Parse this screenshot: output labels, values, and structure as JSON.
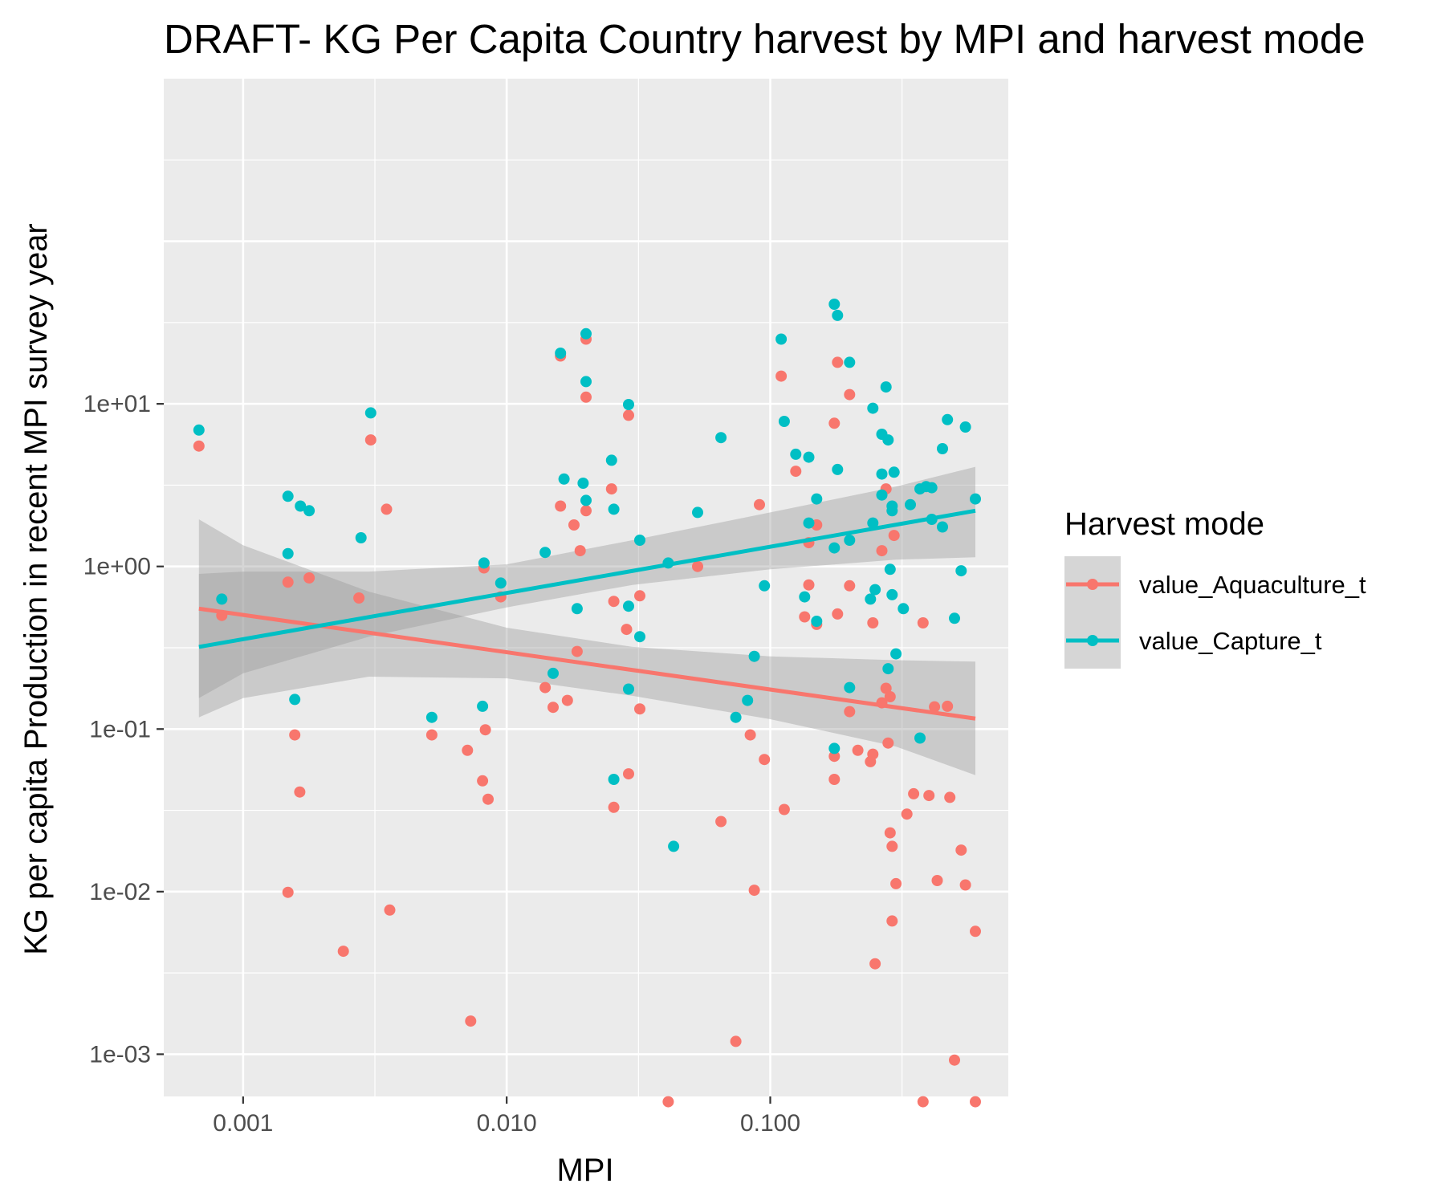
{
  "chart_data": {
    "type": "scatter",
    "title": "DRAFT- KG Per Capita Country harvest by MPI and harvest mode",
    "xlabel": "MPI",
    "ylabel": "KG per capita Production in recent MPI survey year",
    "x_scale": "log10",
    "y_scale": "log10",
    "xlim": [
      0.0005,
      0.8
    ],
    "ylim": [
      0.00055,
      1000
    ],
    "x_ticks": [
      {
        "value": 0.001,
        "label": "0.001"
      },
      {
        "value": 0.01,
        "label": "0.010"
      },
      {
        "value": 0.1,
        "label": "0.100"
      }
    ],
    "y_ticks": [
      {
        "value": 0.001,
        "label": "1e-03"
      },
      {
        "value": 0.01,
        "label": "1e-02"
      },
      {
        "value": 0.1,
        "label": "1e-01"
      },
      {
        "value": 1,
        "label": "1e+00"
      },
      {
        "value": 10,
        "label": "1e+01"
      }
    ],
    "grid": true,
    "legend": {
      "title": "Harvest mode",
      "position": "right"
    },
    "series": [
      {
        "name": "value_Aquaculture_t",
        "color": "#F8766D",
        "points": [
          [
            0.00068,
            5.5
          ],
          [
            0.00083,
            0.5
          ],
          [
            0.00148,
            0.8
          ],
          [
            0.00148,
            0.0099
          ],
          [
            0.00157,
            0.092
          ],
          [
            0.00164,
            0.041
          ],
          [
            0.00178,
            0.85
          ],
          [
            0.0024,
            0.0043
          ],
          [
            0.00275,
            0.64
          ],
          [
            0.00305,
            6.0
          ],
          [
            0.0035,
            2.25
          ],
          [
            0.0036,
            0.0077
          ],
          [
            0.0052,
            0.092
          ],
          [
            0.0071,
            0.074
          ],
          [
            0.0073,
            0.0016
          ],
          [
            0.0081,
            0.048
          ],
          [
            0.0082,
            0.98
          ],
          [
            0.0083,
            0.099
          ],
          [
            0.0085,
            0.037
          ],
          [
            0.0095,
            0.65
          ],
          [
            0.014,
            0.18
          ],
          [
            0.015,
            0.136
          ],
          [
            0.016,
            2.35
          ],
          [
            0.016,
            19.7
          ],
          [
            0.017,
            0.15
          ],
          [
            0.018,
            1.8
          ],
          [
            0.0185,
            0.3
          ],
          [
            0.019,
            1.25
          ],
          [
            0.02,
            11.0
          ],
          [
            0.02,
            2.2
          ],
          [
            0.02,
            25.0
          ],
          [
            0.025,
            3.0
          ],
          [
            0.0255,
            0.61
          ],
          [
            0.0255,
            0.033
          ],
          [
            0.0285,
            0.41
          ],
          [
            0.029,
            8.5
          ],
          [
            0.029,
            0.053
          ],
          [
            0.032,
            0.66
          ],
          [
            0.032,
            0.133
          ],
          [
            0.041,
            0.00051
          ],
          [
            0.053,
            1.0
          ],
          [
            0.065,
            0.027
          ],
          [
            0.074,
            0.0012
          ],
          [
            0.084,
            0.092
          ],
          [
            0.087,
            0.0102
          ],
          [
            0.091,
            2.4
          ],
          [
            0.095,
            0.065
          ],
          [
            0.11,
            14.8
          ],
          [
            0.113,
            0.032
          ],
          [
            0.125,
            3.85
          ],
          [
            0.135,
            0.49
          ],
          [
            0.14,
            0.77
          ],
          [
            0.14,
            1.4
          ],
          [
            0.15,
            0.44
          ],
          [
            0.15,
            1.8
          ],
          [
            0.175,
            7.6
          ],
          [
            0.175,
            0.068
          ],
          [
            0.175,
            0.049
          ],
          [
            0.18,
            18.0
          ],
          [
            0.18,
            0.51
          ],
          [
            0.2,
            11.4
          ],
          [
            0.2,
            0.76
          ],
          [
            0.2,
            0.128
          ],
          [
            0.215,
            0.074
          ],
          [
            0.24,
            0.063
          ],
          [
            0.245,
            0.45
          ],
          [
            0.245,
            0.07
          ],
          [
            0.25,
            0.0036
          ],
          [
            0.265,
            1.25
          ],
          [
            0.265,
            0.145
          ],
          [
            0.275,
            3.0
          ],
          [
            0.275,
            0.178
          ],
          [
            0.28,
            0.082
          ],
          [
            0.285,
            0.158
          ],
          [
            0.285,
            0.023
          ],
          [
            0.29,
            0.0066
          ],
          [
            0.29,
            0.019
          ],
          [
            0.295,
            1.55
          ],
          [
            0.3,
            0.0112
          ],
          [
            0.33,
            0.03
          ],
          [
            0.35,
            0.04
          ],
          [
            0.38,
            0.45
          ],
          [
            0.38,
            0.00051
          ],
          [
            0.4,
            0.039
          ],
          [
            0.42,
            0.137
          ],
          [
            0.43,
            0.0117
          ],
          [
            0.47,
            0.138
          ],
          [
            0.48,
            0.038
          ],
          [
            0.5,
            0.00092
          ],
          [
            0.53,
            0.018
          ],
          [
            0.55,
            0.011
          ],
          [
            0.6,
            0.0057
          ],
          [
            0.6,
            0.00051
          ]
        ],
        "trend": {
          "x": [
            0.00068,
            0.6
          ],
          "y": [
            0.55,
            0.116
          ]
        }
      },
      {
        "name": "value_Capture_t",
        "color": "#00BFC4",
        "points": [
          [
            0.00068,
            6.9
          ],
          [
            0.00083,
            0.63
          ],
          [
            0.00148,
            2.7
          ],
          [
            0.00148,
            1.2
          ],
          [
            0.00157,
            0.152
          ],
          [
            0.00165,
            2.35
          ],
          [
            0.00178,
            2.2
          ],
          [
            0.0028,
            1.5
          ],
          [
            0.00305,
            8.8
          ],
          [
            0.0052,
            0.118
          ],
          [
            0.0081,
            0.138
          ],
          [
            0.0082,
            1.05
          ],
          [
            0.0095,
            0.79
          ],
          [
            0.014,
            1.22
          ],
          [
            0.015,
            0.22
          ],
          [
            0.016,
            20.5
          ],
          [
            0.0165,
            3.45
          ],
          [
            0.0185,
            0.55
          ],
          [
            0.0195,
            3.25
          ],
          [
            0.02,
            27.0
          ],
          [
            0.02,
            13.7
          ],
          [
            0.02,
            2.55
          ],
          [
            0.025,
            4.5
          ],
          [
            0.0255,
            2.25
          ],
          [
            0.0255,
            0.049
          ],
          [
            0.029,
            9.9
          ],
          [
            0.029,
            0.57
          ],
          [
            0.029,
            0.176
          ],
          [
            0.032,
            1.45
          ],
          [
            0.032,
            0.37
          ],
          [
            0.041,
            1.05
          ],
          [
            0.043,
            0.019
          ],
          [
            0.053,
            2.15
          ],
          [
            0.065,
            6.2
          ],
          [
            0.074,
            0.118
          ],
          [
            0.082,
            0.15
          ],
          [
            0.087,
            0.28
          ],
          [
            0.095,
            0.76
          ],
          [
            0.11,
            25.0
          ],
          [
            0.113,
            7.8
          ],
          [
            0.125,
            4.9
          ],
          [
            0.135,
            0.65
          ],
          [
            0.14,
            1.85
          ],
          [
            0.14,
            4.7
          ],
          [
            0.15,
            2.6
          ],
          [
            0.15,
            0.46
          ],
          [
            0.175,
            41.0
          ],
          [
            0.175,
            1.3
          ],
          [
            0.175,
            0.076
          ],
          [
            0.18,
            35.0
          ],
          [
            0.18,
            3.95
          ],
          [
            0.2,
            18.0
          ],
          [
            0.2,
            1.45
          ],
          [
            0.2,
            0.18
          ],
          [
            0.24,
            0.63
          ],
          [
            0.245,
            9.4
          ],
          [
            0.245,
            1.85
          ],
          [
            0.25,
            0.72
          ],
          [
            0.265,
            6.5
          ],
          [
            0.265,
            3.7
          ],
          [
            0.265,
            2.75
          ],
          [
            0.275,
            12.7
          ],
          [
            0.28,
            6.0
          ],
          [
            0.28,
            0.235
          ],
          [
            0.285,
            0.96
          ],
          [
            0.29,
            0.67
          ],
          [
            0.29,
            2.2
          ],
          [
            0.29,
            2.35
          ],
          [
            0.295,
            3.8
          ],
          [
            0.3,
            0.29
          ],
          [
            0.32,
            0.55
          ],
          [
            0.34,
            2.4
          ],
          [
            0.37,
            3.0
          ],
          [
            0.37,
            0.088
          ],
          [
            0.39,
            3.1
          ],
          [
            0.41,
            3.05
          ],
          [
            0.41,
            1.95
          ],
          [
            0.45,
            1.75
          ],
          [
            0.45,
            5.3
          ],
          [
            0.47,
            8.0
          ],
          [
            0.5,
            0.48
          ],
          [
            0.53,
            0.94
          ],
          [
            0.55,
            7.2
          ],
          [
            0.6,
            2.6
          ]
        ],
        "trend": {
          "x": [
            0.00068,
            0.6
          ],
          "y": [
            0.32,
            2.2
          ]
        }
      }
    ],
    "confidence_bands": [
      {
        "series": "value_Aquaculture_t",
        "fill": "#999999",
        "x": [
          0.00068,
          0.001,
          0.003,
          0.01,
          0.03,
          0.1,
          0.3,
          0.6
        ],
        "lower": [
          0.118,
          0.155,
          0.21,
          0.205,
          0.16,
          0.115,
          0.078,
          0.052
        ],
        "upper": [
          1.95,
          1.35,
          0.7,
          0.42,
          0.32,
          0.28,
          0.265,
          0.26
        ]
      },
      {
        "series": "value_Capture_t",
        "fill": "#999999",
        "x": [
          0.00068,
          0.001,
          0.003,
          0.01,
          0.03,
          0.1,
          0.3,
          0.6
        ],
        "lower": [
          0.155,
          0.22,
          0.37,
          0.56,
          0.77,
          0.96,
          1.1,
          1.14
        ],
        "upper": [
          0.9,
          0.93,
          0.93,
          1.03,
          1.45,
          2.15,
          3.1,
          4.1
        ]
      }
    ]
  }
}
